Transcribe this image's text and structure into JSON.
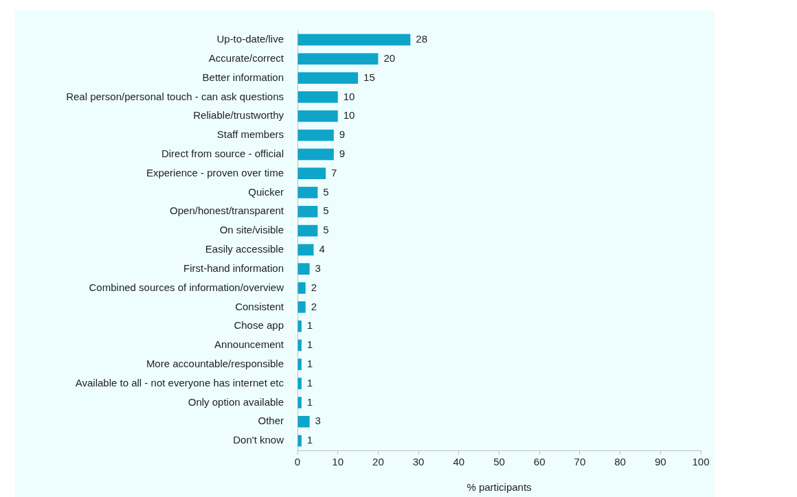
{
  "chart_data": {
    "type": "bar",
    "orientation": "horizontal",
    "xlabel": "% participants",
    "categories": [
      "Up-to-date/live",
      "Accurate/correct",
      "Better information",
      "Real person/personal touch - can ask questions",
      "Reliable/trustworthy",
      "Staff members",
      "Direct from source - official",
      "Experience - proven over time",
      "Quicker",
      "Open/honest/transparent",
      "On site/visible",
      "Easily accessible",
      "First-hand information",
      "Combined sources of information/overview",
      "Consistent",
      "Chose app",
      "Announcement",
      "More accountable/responsible",
      "Available to all - not everyone has internet etc",
      "Only option available",
      "Other",
      "Don't know"
    ],
    "values": [
      28,
      20,
      15,
      10,
      10,
      9,
      9,
      7,
      5,
      5,
      5,
      4,
      3,
      2,
      2,
      1,
      1,
      1,
      1,
      1,
      3,
      1
    ],
    "color": "#0ea5c9",
    "xlim": [
      0,
      100
    ],
    "xticks": [
      0,
      10,
      20,
      30,
      40,
      50,
      60,
      70,
      80,
      90,
      100
    ],
    "grid": false,
    "legend": false,
    "data_labels": true
  }
}
